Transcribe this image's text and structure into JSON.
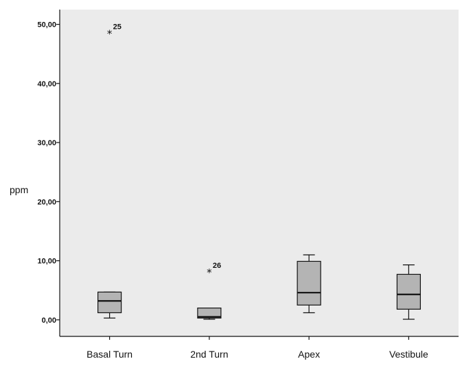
{
  "chart_data": {
    "type": "boxplot",
    "ylabel": "ppm",
    "ylim": [
      -2.8,
      52.5
    ],
    "yticks": [
      0,
      10,
      20,
      30,
      40,
      50
    ],
    "ytick_labels": [
      "0,00",
      "10,00",
      "20,00",
      "30,00",
      "40,00",
      "50,00"
    ],
    "grid": false,
    "categories": [
      "Basal Turn",
      "2nd Turn",
      "Apex",
      "Vestibule"
    ],
    "boxes": [
      {
        "category": "Basal Turn",
        "whisker_low": 0.3,
        "q1": 1.2,
        "median": 3.2,
        "q3": 4.7,
        "whisker_high": 4.7,
        "outliers": [
          {
            "value": 48.5,
            "label": "25"
          }
        ]
      },
      {
        "category": "2nd Turn",
        "whisker_low": 0.1,
        "q1": 0.3,
        "median": 0.5,
        "q3": 2.0,
        "whisker_high": 2.0,
        "outliers": [
          {
            "value": 8.1,
            "label": "26"
          }
        ]
      },
      {
        "category": "Apex",
        "whisker_low": 1.2,
        "q1": 2.5,
        "median": 4.6,
        "q3": 9.9,
        "whisker_high": 11.0,
        "outliers": []
      },
      {
        "category": "Vestibule",
        "whisker_low": 0.1,
        "q1": 1.8,
        "median": 4.3,
        "q3": 7.7,
        "whisker_high": 9.3,
        "outliers": []
      }
    ],
    "colors": {
      "plot_background": "#ebebeb",
      "box_fill": "#b4b4b4",
      "line": "#111111"
    }
  }
}
